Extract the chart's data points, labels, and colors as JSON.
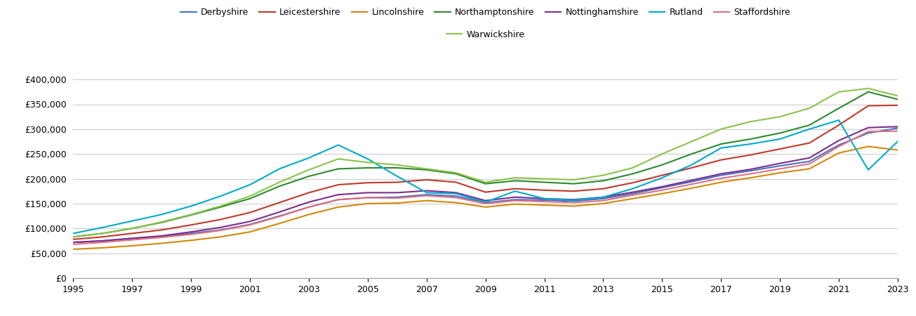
{
  "years": [
    1995,
    1996,
    1997,
    1998,
    1999,
    2000,
    2001,
    2002,
    2003,
    2004,
    2005,
    2006,
    2007,
    2008,
    2009,
    2010,
    2011,
    2012,
    2013,
    2014,
    2015,
    2016,
    2017,
    2018,
    2019,
    2020,
    2021,
    2022,
    2023
  ],
  "series": {
    "Derbyshire": [
      72000,
      75000,
      80000,
      84000,
      90000,
      97000,
      108000,
      125000,
      143000,
      158000,
      162000,
      163000,
      168000,
      165000,
      152000,
      158000,
      157000,
      155000,
      160000,
      170000,
      182000,
      194000,
      207000,
      216000,
      226000,
      235000,
      268000,
      292000,
      302000
    ],
    "Leicestershire": [
      78000,
      83000,
      90000,
      97000,
      107000,
      118000,
      132000,
      152000,
      172000,
      188000,
      192000,
      193000,
      198000,
      193000,
      173000,
      180000,
      177000,
      175000,
      180000,
      192000,
      207000,
      222000,
      238000,
      248000,
      260000,
      272000,
      308000,
      347000,
      348000
    ],
    "Lincolnshire": [
      58000,
      61000,
      65000,
      70000,
      76000,
      83000,
      93000,
      110000,
      128000,
      143000,
      150000,
      151000,
      156000,
      152000,
      143000,
      149000,
      147000,
      145000,
      150000,
      160000,
      170000,
      181000,
      193000,
      202000,
      212000,
      220000,
      252000,
      265000,
      258000
    ],
    "Northamptonshire": [
      83000,
      90000,
      100000,
      112000,
      127000,
      143000,
      160000,
      185000,
      205000,
      220000,
      222000,
      222000,
      218000,
      210000,
      190000,
      196000,
      193000,
      190000,
      196000,
      210000,
      228000,
      250000,
      270000,
      280000,
      292000,
      308000,
      342000,
      375000,
      360000
    ],
    "Nottinghamshire": [
      72000,
      75000,
      80000,
      85000,
      93000,
      102000,
      114000,
      133000,
      153000,
      168000,
      172000,
      172000,
      176000,
      172000,
      156000,
      163000,
      160000,
      158000,
      163000,
      173000,
      184000,
      197000,
      210000,
      219000,
      231000,
      242000,
      277000,
      303000,
      305000
    ],
    "Rutland": [
      90000,
      102000,
      115000,
      128000,
      145000,
      165000,
      188000,
      220000,
      242000,
      268000,
      240000,
      205000,
      172000,
      170000,
      153000,
      175000,
      160000,
      157000,
      163000,
      180000,
      202000,
      228000,
      262000,
      270000,
      280000,
      300000,
      318000,
      218000,
      275000
    ],
    "Staffordshire": [
      68000,
      72000,
      77000,
      82000,
      88000,
      96000,
      107000,
      124000,
      143000,
      158000,
      162000,
      161000,
      166000,
      162000,
      150000,
      156000,
      154000,
      152000,
      156000,
      167000,
      177000,
      189000,
      201000,
      210000,
      220000,
      230000,
      265000,
      295000,
      296000
    ],
    "Warwickshire": [
      83000,
      90000,
      100000,
      113000,
      128000,
      145000,
      165000,
      193000,
      218000,
      240000,
      233000,
      228000,
      220000,
      212000,
      193000,
      202000,
      200000,
      198000,
      207000,
      222000,
      250000,
      275000,
      300000,
      315000,
      325000,
      342000,
      375000,
      382000,
      367000
    ]
  },
  "colors": {
    "Derbyshire": "#4472c4",
    "Leicestershire": "#c0392b",
    "Lincolnshire": "#d4880a",
    "Northamptonshire": "#2d8a2d",
    "Nottinghamshire": "#7b2d8b",
    "Rutland": "#00aacc",
    "Staffordshire": "#e07080",
    "Warwickshire": "#8bc34a"
  },
  "ylim": [
    0,
    420000
  ],
  "yticks": [
    0,
    50000,
    100000,
    150000,
    200000,
    250000,
    300000,
    350000,
    400000
  ],
  "xticks": [
    1995,
    1997,
    1999,
    2001,
    2003,
    2005,
    2007,
    2009,
    2011,
    2013,
    2015,
    2017,
    2019,
    2021,
    2023
  ],
  "background_color": "#ffffff",
  "grid_color": "#cccccc",
  "linewidth": 1.5,
  "legend_row1": [
    "Derbyshire",
    "Leicestershire",
    "Lincolnshire",
    "Northamptonshire",
    "Nottinghamshire",
    "Rutland",
    "Staffordshire"
  ],
  "legend_row2": [
    "Warwickshire"
  ]
}
